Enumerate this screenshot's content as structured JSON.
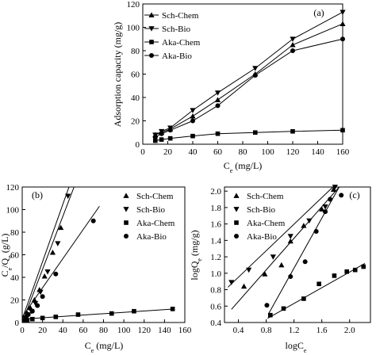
{
  "chart_data": [
    {
      "panel_label": "(a)",
      "type": "line",
      "xlabel": "C",
      "xlabel_sub": "e",
      "xlabel_rest": " (mg/L)",
      "ylabel": "Adsorption capacity (mg/g)",
      "xlim": [
        0,
        160
      ],
      "ylim": [
        0,
        120
      ],
      "xticks": [
        0,
        20,
        40,
        60,
        80,
        100,
        120,
        140,
        160
      ],
      "yticks": [
        0,
        20,
        40,
        60,
        80,
        100,
        120
      ],
      "legend_position": "top-left",
      "series": [
        {
          "name": "Sch-Chem",
          "marker": "triangle-up",
          "x": [
            10,
            15,
            22,
            40,
            60,
            90,
            120,
            160
          ],
          "y": [
            8,
            10,
            13,
            24,
            38,
            60,
            85,
            103
          ]
        },
        {
          "name": "Sch-Bio",
          "marker": "triangle-down",
          "x": [
            10,
            15,
            22,
            40,
            60,
            90,
            120,
            160
          ],
          "y": [
            8,
            11,
            14,
            29,
            44,
            65,
            90,
            113
          ]
        },
        {
          "name": "Aka-Chem",
          "marker": "square",
          "x": [
            10,
            15,
            22,
            40,
            60,
            90,
            120,
            160
          ],
          "y": [
            3,
            4,
            5,
            7,
            9,
            10,
            11,
            12
          ]
        },
        {
          "name": "Aka-Bio",
          "marker": "circle",
          "x": [
            10,
            15,
            22,
            40,
            60,
            90,
            120,
            160
          ],
          "y": [
            6,
            9,
            12,
            20,
            33,
            59,
            80,
            90
          ]
        }
      ]
    },
    {
      "panel_label": "(b)",
      "type": "scatter",
      "xlabel": "C",
      "xlabel_sub": "e",
      "xlabel_rest": " (mg/L)",
      "ylabel": "C",
      "ylabel_sub1": "e",
      "ylabel_mid": "/Q",
      "ylabel_sub2": "e",
      "ylabel_rest": " (g/L)",
      "xlim": [
        0,
        160
      ],
      "ylim": [
        0,
        120
      ],
      "xticks": [
        0,
        20,
        40,
        60,
        80,
        100,
        120,
        140,
        160
      ],
      "yticks": [
        0,
        20,
        40,
        60,
        80,
        100,
        120
      ],
      "legend_position": "top-right",
      "series": [
        {
          "name": "Sch-Chem",
          "marker": "triangle-up",
          "x": [
            3,
            5,
            8,
            12,
            17,
            22,
            30,
            38
          ],
          "y": [
            5,
            8,
            13,
            20,
            29,
            41,
            62,
            84
          ],
          "fit": [
            [
              0,
              3
            ],
            [
              46,
              120
            ]
          ]
        },
        {
          "name": "Sch-Bio",
          "marker": "triangle-down",
          "x": [
            3,
            6,
            9,
            13,
            18,
            25,
            35,
            45
          ],
          "y": [
            4,
            7,
            10,
            17,
            27,
            45,
            70,
            112
          ],
          "fit": [
            [
              0,
              0
            ],
            [
              51,
              120
            ]
          ]
        },
        {
          "name": "Aka-Chem",
          "marker": "square",
          "x": [
            5,
            10,
            20,
            33,
            55,
            88,
            110,
            148
          ],
          "y": [
            2,
            3,
            4,
            5,
            7,
            8,
            10,
            12
          ],
          "fit": [
            [
              0,
              3
            ],
            [
              150,
              12
            ]
          ]
        },
        {
          "name": "Aka-Bio",
          "marker": "circle",
          "x": [
            2,
            4,
            6,
            10,
            15,
            20,
            33,
            70
          ],
          "y": [
            2,
            5,
            7,
            10,
            15,
            23,
            43,
            90
          ],
          "fit": [
            [
              0,
              5
            ],
            [
              76,
              103
            ]
          ]
        }
      ]
    },
    {
      "panel_label": "(c)",
      "type": "scatter",
      "xlabel": "logC",
      "xlabel_sub": "e",
      "xlabel_rest": "",
      "ylabel": "logQ",
      "ylabel_sub": "e",
      "ylabel_rest": " (mg/g)",
      "xlim": [
        0.2,
        2.3
      ],
      "ylim": [
        0.4,
        2.05
      ],
      "xticks": [
        0.4,
        0.8,
        1.2,
        1.6,
        2.0
      ],
      "yticks": [
        0.4,
        0.6,
        0.8,
        1.0,
        1.2,
        1.4,
        1.6,
        1.8,
        2.0
      ],
      "legend_position": "top-left",
      "series": [
        {
          "name": "Sch-Chem",
          "marker": "triangle-up",
          "x": [
            0.48,
            0.78,
            1.02,
            1.15,
            1.34,
            1.6,
            1.77
          ],
          "y": [
            0.84,
            0.99,
            1.1,
            1.39,
            1.58,
            1.78,
            2.02
          ],
          "fit": [
            [
              0.3,
              0.56
            ],
            [
              1.85,
              2.05
            ]
          ]
        },
        {
          "name": "Sch-Bio",
          "marker": "triangle-down",
          "x": [
            0.3,
            0.55,
            0.9,
            1.15,
            1.42,
            1.65,
            1.79
          ],
          "y": [
            0.89,
            1.04,
            1.2,
            1.45,
            1.64,
            1.81,
            2.05
          ],
          "fit": [
            [
              0.25,
              0.83
            ],
            [
              1.76,
              2.05
            ]
          ]
        },
        {
          "name": "Aka-Chem",
          "marker": "square",
          "x": [
            0.86,
            1.05,
            1.34,
            1.56,
            1.78,
            1.96,
            2.08,
            2.2
          ],
          "y": [
            0.49,
            0.57,
            0.69,
            0.87,
            0.97,
            1.02,
            1.04,
            1.08
          ],
          "fit": [
            [
              0.82,
              0.45
            ],
            [
              2.22,
              1.12
            ]
          ]
        },
        {
          "name": "Aka-Bio",
          "marker": "circle",
          "x": [
            0.81,
            1.15,
            1.36,
            1.52,
            1.65,
            1.72,
            1.88
          ],
          "y": [
            0.61,
            0.96,
            1.14,
            1.51,
            1.75,
            1.9,
            1.95
          ],
          "fit": [
            [
              0.83,
              0.5
            ],
            [
              1.85,
              2.05
            ]
          ]
        }
      ]
    }
  ]
}
